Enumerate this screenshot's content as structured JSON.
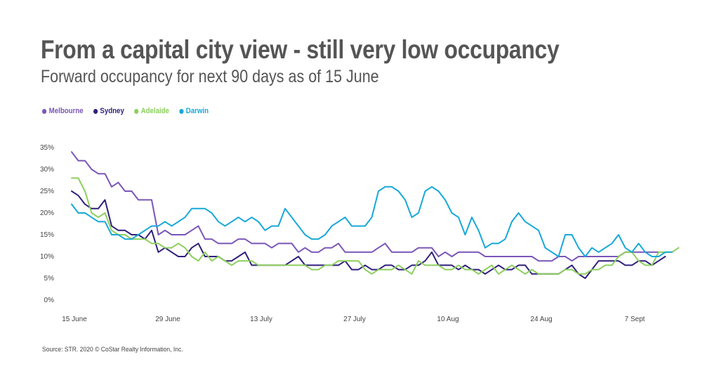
{
  "header": {
    "title": "From a capital city view - still very low occupancy",
    "subtitle": "Forward occupancy for next 90 days as of 15 June"
  },
  "footer": {
    "source": "Source: STR. 2020 © CoStar Realty Information, Inc."
  },
  "chart_data": {
    "type": "line",
    "title": "From a capital city view - still very low occupancy",
    "subtitle": "Forward occupancy for next 90 days as of 15 June",
    "xlabel": "",
    "ylabel": "",
    "ylim": [
      0,
      35
    ],
    "yticks": [
      "0%",
      "5%",
      "10%",
      "15%",
      "20%",
      "25%",
      "30%",
      "35%"
    ],
    "xticks": [
      {
        "label": "15 June",
        "day": 0
      },
      {
        "label": "29 June",
        "day": 14
      },
      {
        "label": "13 July",
        "day": 28
      },
      {
        "label": "27 July",
        "day": 42
      },
      {
        "label": "10 Aug",
        "day": 56
      },
      {
        "label": "24 Aug",
        "day": 70
      },
      {
        "label": "7 Sept",
        "day": 84
      }
    ],
    "grid": false,
    "legend_position": "top-left",
    "series": [
      {
        "name": "Melbourne",
        "color": "#7a55b8",
        "values": [
          34,
          32,
          32,
          30,
          29,
          29,
          26,
          27,
          25,
          25,
          23,
          23,
          23,
          15,
          16,
          15,
          15,
          15,
          16,
          17,
          14,
          14,
          13,
          13,
          13,
          14,
          14,
          13,
          13,
          13,
          12,
          13,
          13,
          13,
          11,
          12,
          11,
          11,
          12,
          12,
          13,
          11,
          11,
          11,
          11,
          11,
          12,
          13,
          11,
          11,
          11,
          11,
          12,
          12,
          12,
          10,
          11,
          10,
          11,
          11,
          11,
          11,
          10,
          10,
          10,
          10,
          10,
          10,
          10,
          10,
          9,
          9,
          9,
          10,
          10,
          9,
          10,
          10,
          10,
          10,
          10,
          10,
          10,
          11,
          11,
          11,
          11,
          11,
          11
        ]
      },
      {
        "name": "Sydney",
        "color": "#2e1f7c",
        "values": [
          25,
          24,
          22,
          21,
          21,
          23,
          17,
          16,
          16,
          15,
          15,
          14,
          16,
          11,
          12,
          11,
          10,
          10,
          12,
          13,
          10,
          10,
          10,
          9,
          9,
          10,
          11,
          8,
          8,
          8,
          8,
          8,
          8,
          9,
          10,
          8,
          8,
          8,
          8,
          8,
          8,
          9,
          7,
          7,
          8,
          7,
          7,
          8,
          8,
          7,
          7,
          8,
          8,
          9,
          11,
          8,
          8,
          8,
          7,
          8,
          7,
          7,
          6,
          7,
          8,
          7,
          7,
          8,
          8,
          6,
          6,
          6,
          6,
          6,
          7,
          8,
          6,
          5,
          7,
          9,
          9,
          9,
          9,
          8,
          8,
          9,
          9,
          8,
          9,
          10
        ]
      },
      {
        "name": "Adelaide",
        "color": "#8ccf5c",
        "values": [
          28,
          28,
          25,
          20,
          19,
          20,
          16,
          15,
          15,
          14,
          14,
          14,
          13,
          13,
          12,
          12,
          13,
          12,
          10,
          9,
          11,
          9,
          10,
          9,
          8,
          9,
          9,
          9,
          8,
          8,
          8,
          8,
          8,
          8,
          8,
          8,
          7,
          7,
          8,
          8,
          9,
          9,
          9,
          9,
          7,
          6,
          7,
          7,
          7,
          8,
          7,
          6,
          9,
          8,
          8,
          8,
          7,
          7,
          8,
          7,
          7,
          6,
          7,
          8,
          6,
          7,
          8,
          7,
          6,
          7,
          6,
          6,
          6,
          6,
          7,
          7,
          6,
          6,
          7,
          7,
          8,
          8,
          10,
          11,
          11,
          9,
          8,
          8,
          11,
          11,
          11,
          12
        ]
      },
      {
        "name": "Darwin",
        "color": "#17a8d8",
        "values": [
          22,
          20,
          20,
          19,
          18,
          18,
          15,
          15,
          14,
          14,
          15,
          16,
          17,
          17,
          18,
          17,
          18,
          19,
          21,
          21,
          21,
          20,
          18,
          17,
          18,
          19,
          18,
          19,
          18,
          16,
          17,
          17,
          21,
          19,
          17,
          15,
          14,
          14,
          15,
          17,
          18,
          19,
          17,
          17,
          17,
          19,
          25,
          26,
          26,
          25,
          23,
          19,
          20,
          25,
          26,
          25,
          23,
          20,
          19,
          15,
          19,
          16,
          12,
          13,
          13,
          14,
          18,
          20,
          18,
          17,
          16,
          12,
          11,
          10,
          15,
          15,
          12,
          10,
          12,
          11,
          12,
          13,
          15,
          12,
          11,
          13,
          11,
          10,
          10,
          11,
          11
        ]
      }
    ]
  }
}
